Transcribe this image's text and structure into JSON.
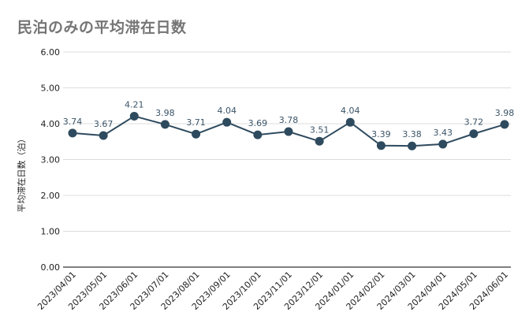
{
  "chart_data": {
    "type": "line",
    "title": "民泊のみの平均滞在日数",
    "xlabel": "",
    "ylabel": "平均滞在日数（泊）",
    "ylim": [
      0,
      6
    ],
    "yticks": [
      "0.00",
      "1.00",
      "2.00",
      "3.00",
      "4.00",
      "5.00",
      "6.00"
    ],
    "categories": [
      "2023/04/01",
      "2023/05/01",
      "2023/06/01",
      "2023/07/01",
      "2023/08/01",
      "2023/09/01",
      "2023/10/01",
      "2023/11/01",
      "2023/12/01",
      "2024/01/01",
      "2024/02/01",
      "2024/03/01",
      "2024/04/01",
      "2024/05/01",
      "2024/06/01"
    ],
    "values": [
      3.74,
      3.67,
      4.21,
      3.98,
      3.71,
      4.04,
      3.69,
      3.78,
      3.51,
      4.04,
      3.39,
      3.38,
      3.43,
      3.72,
      3.98
    ],
    "data_labels": [
      "3.74",
      "3.67",
      "4.21",
      "3.98",
      "3.71",
      "4.04",
      "3.69",
      "3.78",
      "3.51",
      "4.04",
      "3.39",
      "3.38",
      "3.43",
      "3.72",
      "3.98"
    ],
    "grid": true,
    "legend": "none",
    "colors": {
      "line": "#2e4a5e",
      "marker": "#2e4a5e",
      "grid": "#dcdcdc",
      "axis": "#333333"
    }
  }
}
